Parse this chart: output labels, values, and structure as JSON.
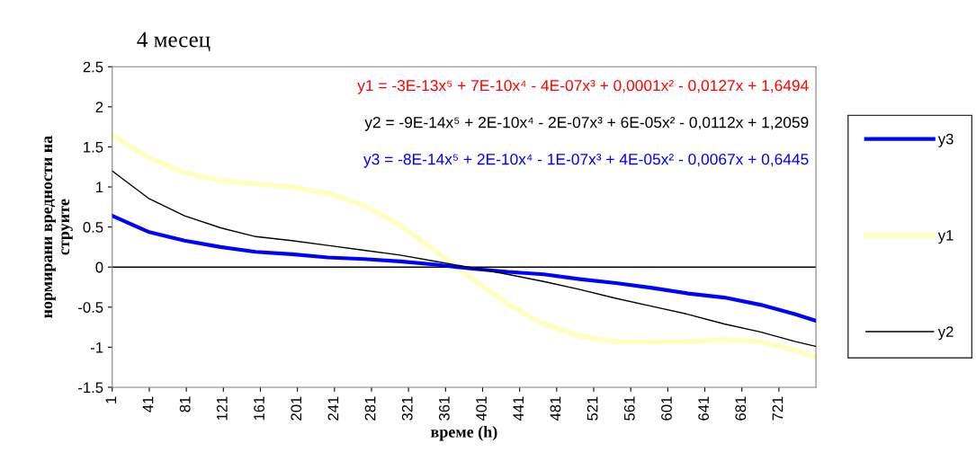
{
  "chart_data": {
    "type": "line",
    "title": "4 месец",
    "xlabel": "време (h)",
    "ylabel": "нормирани вредности на\nструите",
    "x": [
      1,
      40,
      79,
      118,
      156,
      195,
      234,
      273,
      312,
      351,
      390,
      428,
      467,
      506,
      545,
      584,
      623,
      662,
      701,
      739,
      761
    ],
    "series": [
      {
        "name": "y3",
        "color": "#0000ff",
        "values": [
          0.64,
          0.44,
          0.33,
          0.25,
          0.19,
          0.16,
          0.12,
          0.1,
          0.07,
          0.03,
          -0.02,
          -0.06,
          -0.09,
          -0.15,
          -0.2,
          -0.26,
          -0.33,
          -0.38,
          -0.47,
          -0.59,
          -0.67
        ]
      },
      {
        "name": "y1",
        "color": "#ffffc0",
        "values": [
          1.65,
          1.37,
          1.18,
          1.08,
          1.04,
          1.0,
          0.92,
          0.77,
          0.52,
          0.19,
          -0.15,
          -0.46,
          -0.71,
          -0.86,
          -0.93,
          -0.94,
          -0.93,
          -0.91,
          -0.93,
          -1.04,
          -1.13
        ]
      },
      {
        "name": "y2",
        "color": "#000000",
        "values": [
          1.2,
          0.86,
          0.64,
          0.49,
          0.38,
          0.33,
          0.27,
          0.21,
          0.15,
          0.07,
          -0.01,
          -0.09,
          -0.18,
          -0.28,
          -0.39,
          -0.49,
          -0.59,
          -0.71,
          -0.81,
          -0.93,
          -0.99
        ]
      }
    ],
    "annotations": [
      "y1 = -3E-13x⁵ + 7E-10x⁴ - 4E-07x³ + 0,0001x² - 0,0127x + 1,6494",
      "y2 = -9E-14x⁵ + 2E-10x⁴ - 2E-07x³ + 6E-05x² - 0,0112x + 1,2059",
      "y3 = -8E-14x⁵ + 2E-10x⁴ - 1E-07x³ + 4E-05x² - 0,0067x + 0,6445"
    ],
    "xlim": [
      1,
      761
    ],
    "xticks": [
      1,
      41,
      81,
      121,
      161,
      201,
      241,
      281,
      321,
      361,
      401,
      441,
      481,
      521,
      561,
      601,
      641,
      681,
      721
    ],
    "ylim": [
      -1.5,
      2.5
    ],
    "yticks": [
      -1.5,
      -1,
      -0.5,
      0,
      0.5,
      1,
      1.5,
      2,
      2.5
    ],
    "ref_lines": [
      {
        "axis": "y",
        "value": 0,
        "color": "#000000"
      }
    ],
    "grid": false,
    "legend": "right",
    "marker": "none",
    "line_style": "solid"
  }
}
